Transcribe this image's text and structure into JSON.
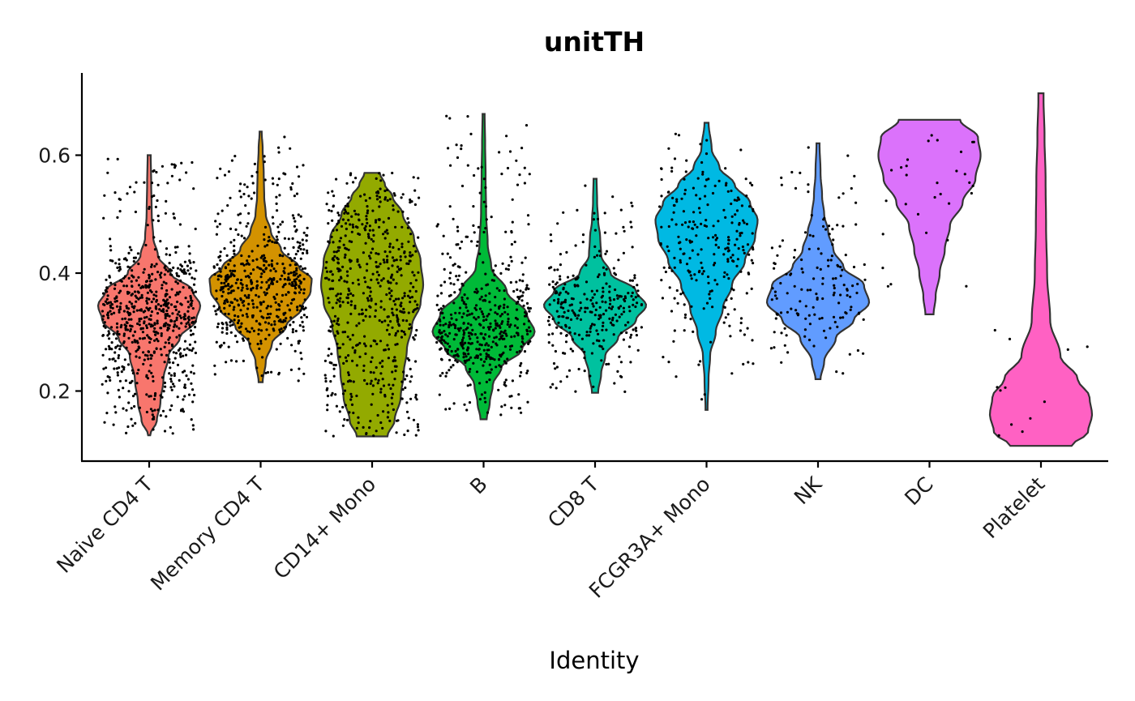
{
  "chart_data": {
    "type": "violin",
    "title": "unitTH",
    "xlabel": "Identity",
    "ylabel": "",
    "ylim": [
      0.08,
      0.74
    ],
    "yticks": [
      0.2,
      0.4,
      0.6
    ],
    "ytick_labels": [
      "0.2",
      "0.4",
      "0.6"
    ],
    "categories": [
      "Naive CD4 T",
      "Memory CD4 T",
      "CD14+ Mono",
      "B",
      "CD8 T",
      "FCGR3A+ Mono",
      "NK",
      "DC",
      "Platelet"
    ],
    "colors": [
      "#F8766D",
      "#D39200",
      "#93AA00",
      "#00BA38",
      "#00C19F",
      "#00B9E3",
      "#619CFF",
      "#DB72FB",
      "#FF61C3"
    ],
    "grid": false,
    "legend": "none",
    "groups": [
      {
        "name": "Naive CD4 T",
        "min": 0.125,
        "max": 0.6,
        "n_points": 700,
        "profile": [
          [
            0.125,
            0.02
          ],
          [
            0.15,
            0.15
          ],
          [
            0.18,
            0.22
          ],
          [
            0.22,
            0.28
          ],
          [
            0.26,
            0.38
          ],
          [
            0.29,
            0.6
          ],
          [
            0.32,
            0.92
          ],
          [
            0.345,
            1.0
          ],
          [
            0.37,
            0.85
          ],
          [
            0.4,
            0.42
          ],
          [
            0.43,
            0.17
          ],
          [
            0.46,
            0.08
          ],
          [
            0.5,
            0.05
          ],
          [
            0.55,
            0.04
          ],
          [
            0.6,
            0.03
          ]
        ]
      },
      {
        "name": "Memory CD4 T",
        "min": 0.215,
        "max": 0.64,
        "n_points": 550,
        "profile": [
          [
            0.215,
            0.04
          ],
          [
            0.25,
            0.1
          ],
          [
            0.28,
            0.22
          ],
          [
            0.31,
            0.5
          ],
          [
            0.34,
            0.8
          ],
          [
            0.37,
            0.98
          ],
          [
            0.39,
            1.0
          ],
          [
            0.41,
            0.75
          ],
          [
            0.44,
            0.4
          ],
          [
            0.47,
            0.2
          ],
          [
            0.5,
            0.1
          ],
          [
            0.53,
            0.07
          ],
          [
            0.57,
            0.06
          ],
          [
            0.61,
            0.04
          ],
          [
            0.64,
            0.02
          ]
        ]
      },
      {
        "name": "CD14+ Mono",
        "min": 0.123,
        "max": 0.57,
        "n_points": 600,
        "profile": [
          [
            0.123,
            0.3
          ],
          [
            0.15,
            0.44
          ],
          [
            0.19,
            0.56
          ],
          [
            0.23,
            0.62
          ],
          [
            0.27,
            0.68
          ],
          [
            0.31,
            0.78
          ],
          [
            0.35,
            0.95
          ],
          [
            0.38,
            1.0
          ],
          [
            0.42,
            0.95
          ],
          [
            0.46,
            0.82
          ],
          [
            0.5,
            0.6
          ],
          [
            0.53,
            0.4
          ],
          [
            0.55,
            0.25
          ],
          [
            0.57,
            0.15
          ]
        ]
      },
      {
        "name": "B",
        "min": 0.152,
        "max": 0.67,
        "n_points": 500,
        "profile": [
          [
            0.152,
            0.06
          ],
          [
            0.18,
            0.12
          ],
          [
            0.21,
            0.18
          ],
          [
            0.24,
            0.35
          ],
          [
            0.27,
            0.75
          ],
          [
            0.3,
            1.0
          ],
          [
            0.33,
            0.85
          ],
          [
            0.37,
            0.45
          ],
          [
            0.41,
            0.15
          ],
          [
            0.45,
            0.08
          ],
          [
            0.5,
            0.05
          ],
          [
            0.56,
            0.04
          ],
          [
            0.62,
            0.03
          ],
          [
            0.67,
            0.02
          ]
        ]
      },
      {
        "name": "CD8 T",
        "min": 0.197,
        "max": 0.56,
        "n_points": 300,
        "profile": [
          [
            0.197,
            0.06
          ],
          [
            0.23,
            0.12
          ],
          [
            0.26,
            0.2
          ],
          [
            0.29,
            0.45
          ],
          [
            0.32,
            0.8
          ],
          [
            0.345,
            1.0
          ],
          [
            0.37,
            0.8
          ],
          [
            0.4,
            0.3
          ],
          [
            0.43,
            0.12
          ],
          [
            0.46,
            0.1
          ],
          [
            0.49,
            0.06
          ],
          [
            0.52,
            0.04
          ],
          [
            0.56,
            0.03
          ]
        ]
      },
      {
        "name": "FCGR3A+ Mono",
        "min": 0.168,
        "max": 0.655,
        "n_points": 250,
        "profile": [
          [
            0.168,
            0.02
          ],
          [
            0.22,
            0.04
          ],
          [
            0.26,
            0.07
          ],
          [
            0.3,
            0.18
          ],
          [
            0.34,
            0.32
          ],
          [
            0.38,
            0.5
          ],
          [
            0.42,
            0.75
          ],
          [
            0.46,
            0.95
          ],
          [
            0.49,
            1.0
          ],
          [
            0.52,
            0.85
          ],
          [
            0.55,
            0.55
          ],
          [
            0.58,
            0.25
          ],
          [
            0.61,
            0.1
          ],
          [
            0.655,
            0.04
          ]
        ]
      },
      {
        "name": "NK",
        "min": 0.22,
        "max": 0.62,
        "n_points": 150,
        "profile": [
          [
            0.22,
            0.05
          ],
          [
            0.25,
            0.12
          ],
          [
            0.29,
            0.35
          ],
          [
            0.32,
            0.7
          ],
          [
            0.35,
            1.0
          ],
          [
            0.38,
            0.9
          ],
          [
            0.41,
            0.5
          ],
          [
            0.44,
            0.3
          ],
          [
            0.47,
            0.2
          ],
          [
            0.5,
            0.12
          ],
          [
            0.53,
            0.08
          ],
          [
            0.57,
            0.05
          ],
          [
            0.62,
            0.03
          ]
        ]
      },
      {
        "name": "DC",
        "min": 0.33,
        "max": 0.66,
        "n_points": 30,
        "profile": [
          [
            0.33,
            0.08
          ],
          [
            0.36,
            0.12
          ],
          [
            0.4,
            0.2
          ],
          [
            0.44,
            0.3
          ],
          [
            0.48,
            0.4
          ],
          [
            0.52,
            0.65
          ],
          [
            0.56,
            0.9
          ],
          [
            0.6,
            1.0
          ],
          [
            0.63,
            0.95
          ],
          [
            0.66,
            0.6
          ]
        ]
      },
      {
        "name": "Platelet",
        "min": 0.107,
        "max": 0.705,
        "n_points": 12,
        "profile": [
          [
            0.107,
            0.6
          ],
          [
            0.13,
            0.92
          ],
          [
            0.16,
            1.0
          ],
          [
            0.19,
            0.95
          ],
          [
            0.22,
            0.72
          ],
          [
            0.26,
            0.38
          ],
          [
            0.32,
            0.18
          ],
          [
            0.4,
            0.12
          ],
          [
            0.48,
            0.1
          ],
          [
            0.56,
            0.09
          ],
          [
            0.63,
            0.07
          ],
          [
            0.7,
            0.05
          ]
        ]
      }
    ]
  }
}
